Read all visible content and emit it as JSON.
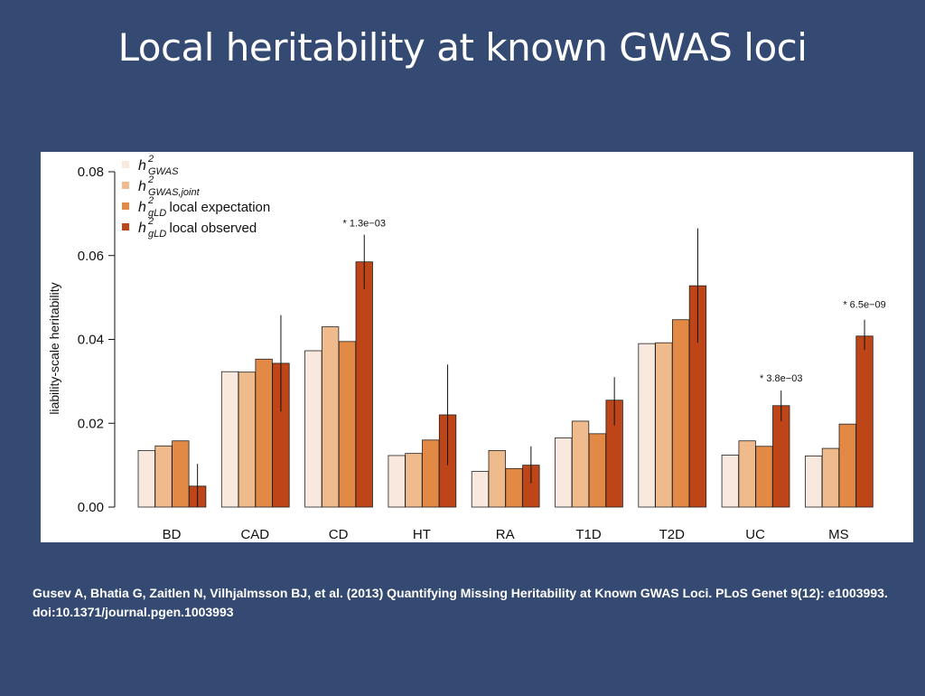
{
  "slide": {
    "title": "Local heritability at known GWAS loci",
    "citation_line1": "Gusev A, Bhatia G, Zaitlen N, Vilhjalmsson BJ, et al. (2013) Quantifying Missing Heritability at Known GWAS Loci. PLoS Genet 9(12): e1003993.",
    "citation_line2": "doi:10.1371/journal.pgen.1003993"
  },
  "chart_data": {
    "type": "bar",
    "ylabel": "liability-scale heritability",
    "ylim": [
      0,
      0.08
    ],
    "yticks": [
      "0.00",
      "0.02",
      "0.04",
      "0.06",
      "0.08"
    ],
    "ytick_values": [
      0,
      0.02,
      0.04,
      0.06,
      0.08
    ],
    "categories": [
      "BD",
      "CAD",
      "CD",
      "HT",
      "RA",
      "T1D",
      "T2D",
      "UC",
      "MS"
    ],
    "legend_position": "top-left",
    "series": [
      {
        "symbol": "h",
        "sup": "2",
        "sub": "GWAS",
        "suffix": "",
        "color": "#f8e8de",
        "values": [
          0.0135,
          0.0323,
          0.0373,
          0.0123,
          0.0085,
          0.0165,
          0.039,
          0.0124,
          0.0122
        ]
      },
      {
        "symbol": "h",
        "sup": "2",
        "sub": "GWAS,joint",
        "suffix": "",
        "color": "#efbb8d",
        "values": [
          0.0146,
          0.0322,
          0.043,
          0.0128,
          0.0135,
          0.0205,
          0.0392,
          0.0158,
          0.014
        ]
      },
      {
        "symbol": "h",
        "sup": "2",
        "sub": "gLD",
        "suffix": "local expectation",
        "color": "#e28a45",
        "values": [
          0.0158,
          0.0353,
          0.0395,
          0.016,
          0.0092,
          0.0175,
          0.0447,
          0.0145,
          0.0198
        ]
      },
      {
        "symbol": "h",
        "sup": "2",
        "sub": "gLD",
        "suffix": "local observed",
        "color": "#bd4517",
        "values": [
          0.005,
          0.0343,
          0.0585,
          0.022,
          0.01,
          0.0255,
          0.0528,
          0.0242,
          0.0408
        ],
        "err_low": [
          0.0,
          0.0228,
          0.052,
          0.01,
          0.0057,
          0.0195,
          0.0392,
          0.0205,
          0.0375
        ],
        "err_high": [
          0.0103,
          0.0458,
          0.065,
          0.034,
          0.0145,
          0.031,
          0.0665,
          0.0278,
          0.0447
        ]
      }
    ],
    "annotations": [
      {
        "category": "CD",
        "text": "* 1.3e−03",
        "y": 0.067
      },
      {
        "category": "UC",
        "text": "* 3.8e−03",
        "y": 0.03
      },
      {
        "category": "MS",
        "text": "* 6.5e−09",
        "y": 0.0475
      }
    ]
  }
}
